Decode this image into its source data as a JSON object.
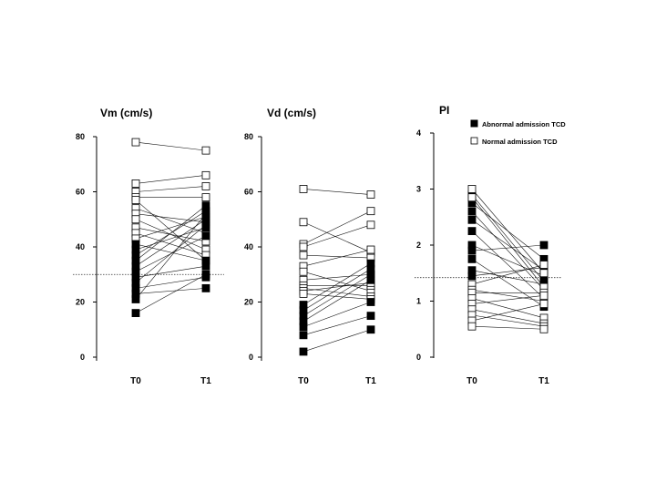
{
  "colors": {
    "abnormal": "#000000",
    "normal": "#ffffff",
    "stroke": "#000000",
    "line": "#111111",
    "threshold": "#333333"
  },
  "legend": {
    "abnormal_label": "Abnormal admission TCD",
    "normal_label": "Normal admission TCD"
  },
  "chart_data": [
    {
      "type": "scatter",
      "title": "Vm (cm/s)",
      "categories": [
        "T0",
        "T1"
      ],
      "ylim": [
        0,
        80
      ],
      "yticks": [
        0,
        20,
        40,
        60,
        80
      ],
      "threshold": 30,
      "pairs": [
        {
          "t0": 78,
          "t1": 75,
          "group": "normal"
        },
        {
          "t0": 63,
          "t1": 66,
          "group": "normal"
        },
        {
          "t0": 60,
          "t1": 62,
          "group": "normal"
        },
        {
          "t0": 58,
          "t1": 58,
          "group": "normal"
        },
        {
          "t0": 57,
          "t1": 35,
          "group": "normal"
        },
        {
          "t0": 54,
          "t1": 45,
          "group": "normal"
        },
        {
          "t0": 52,
          "t1": 49,
          "group": "normal"
        },
        {
          "t0": 50,
          "t1": 39,
          "group": "normal"
        },
        {
          "t0": 47,
          "t1": 42,
          "group": "normal"
        },
        {
          "t0": 45,
          "t1": 37,
          "group": "normal"
        },
        {
          "t0": 43,
          "t1": 51,
          "group": "normal"
        },
        {
          "t0": 41,
          "t1": 35,
          "group": "abnormal"
        },
        {
          "t0": 39,
          "t1": 47,
          "group": "abnormal"
        },
        {
          "t0": 37,
          "t1": 53,
          "group": "abnormal"
        },
        {
          "t0": 35,
          "t1": 55,
          "group": "abnormal"
        },
        {
          "t0": 33,
          "t1": 50,
          "group": "abnormal"
        },
        {
          "t0": 31,
          "t1": 44,
          "group": "abnormal"
        },
        {
          "t0": 29,
          "t1": 33,
          "group": "abnormal"
        },
        {
          "t0": 27,
          "t1": 48,
          "group": "abnormal"
        },
        {
          "t0": 25,
          "t1": 29,
          "group": "abnormal"
        },
        {
          "t0": 23,
          "t1": 25,
          "group": "abnormal"
        },
        {
          "t0": 21,
          "t1": 52,
          "group": "abnormal"
        },
        {
          "t0": 16,
          "t1": 30,
          "group": "abnormal"
        }
      ]
    },
    {
      "type": "scatter",
      "title": "Vd (cm/s)",
      "categories": [
        "T0",
        "T1"
      ],
      "ylim": [
        0,
        80
      ],
      "yticks": [
        0,
        20,
        40,
        60,
        80
      ],
      "pairs": [
        {
          "t0": 61,
          "t1": 59,
          "group": "normal"
        },
        {
          "t0": 49,
          "t1": 38,
          "group": "normal"
        },
        {
          "t0": 41,
          "t1": 53,
          "group": "normal"
        },
        {
          "t0": 40,
          "t1": 48,
          "group": "normal"
        },
        {
          "t0": 37,
          "t1": 36,
          "group": "normal"
        },
        {
          "t0": 33,
          "t1": 39,
          "group": "normal"
        },
        {
          "t0": 31,
          "t1": 24,
          "group": "normal"
        },
        {
          "t0": 28,
          "t1": 30,
          "group": "normal"
        },
        {
          "t0": 26,
          "t1": 26,
          "group": "normal"
        },
        {
          "t0": 25,
          "t1": 22,
          "group": "normal"
        },
        {
          "t0": 24,
          "t1": 27,
          "group": "normal"
        },
        {
          "t0": 23,
          "t1": 21,
          "group": "normal"
        },
        {
          "t0": 19,
          "t1": 34,
          "group": "abnormal"
        },
        {
          "t0": 17,
          "t1": 32,
          "group": "abnormal"
        },
        {
          "t0": 15,
          "t1": 30,
          "group": "abnormal"
        },
        {
          "t0": 13,
          "t1": 28,
          "group": "abnormal"
        },
        {
          "t0": 11,
          "t1": 20,
          "group": "abnormal"
        },
        {
          "t0": 8,
          "t1": 15,
          "group": "abnormal"
        },
        {
          "t0": 2,
          "t1": 10,
          "group": "abnormal"
        }
      ]
    },
    {
      "type": "scatter",
      "title": "PI",
      "categories": [
        "T0",
        "T1"
      ],
      "ylim": [
        0,
        4
      ],
      "yticks": [
        0,
        1,
        2,
        3,
        4
      ],
      "threshold": 1.42,
      "pairs": [
        {
          "t0": 2.9,
          "t1": 1.35,
          "group": "abnormal"
        },
        {
          "t0": 2.75,
          "t1": 1.75,
          "group": "abnormal"
        },
        {
          "t0": 2.6,
          "t1": 1.2,
          "group": "abnormal"
        },
        {
          "t0": 2.45,
          "t1": 1.55,
          "group": "abnormal"
        },
        {
          "t0": 2.25,
          "t1": 1.05,
          "group": "abnormal"
        },
        {
          "t0": 2.0,
          "t1": 1.45,
          "group": "abnormal"
        },
        {
          "t0": 1.9,
          "t1": 2.0,
          "group": "abnormal"
        },
        {
          "t0": 1.75,
          "t1": 0.9,
          "group": "abnormal"
        },
        {
          "t0": 1.55,
          "t1": 1.3,
          "group": "abnormal"
        },
        {
          "t0": 1.45,
          "t1": 1.6,
          "group": "abnormal"
        },
        {
          "t0": 3.0,
          "t1": 1.5,
          "group": "normal"
        },
        {
          "t0": 2.85,
          "t1": 1.25,
          "group": "normal"
        },
        {
          "t0": 1.3,
          "t1": 1.65,
          "group": "normal"
        },
        {
          "t0": 1.2,
          "t1": 1.0,
          "group": "normal"
        },
        {
          "t0": 1.15,
          "t1": 1.15,
          "group": "normal"
        },
        {
          "t0": 1.05,
          "t1": 0.7,
          "group": "normal"
        },
        {
          "t0": 0.95,
          "t1": 1.1,
          "group": "normal"
        },
        {
          "t0": 0.85,
          "t1": 0.6,
          "group": "normal"
        },
        {
          "t0": 0.75,
          "t1": 0.55,
          "group": "normal"
        },
        {
          "t0": 0.65,
          "t1": 0.95,
          "group": "normal"
        },
        {
          "t0": 0.55,
          "t1": 0.5,
          "group": "normal"
        }
      ]
    }
  ]
}
